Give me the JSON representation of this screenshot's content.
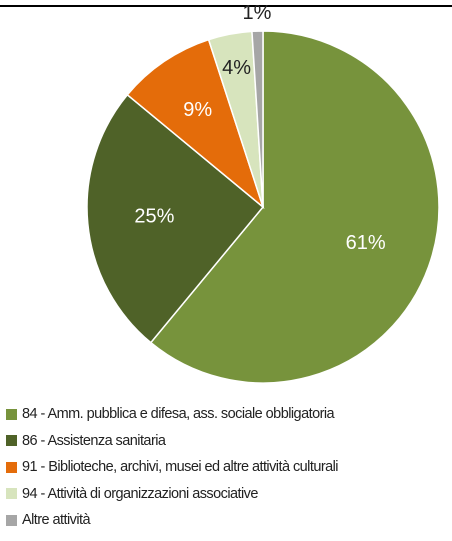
{
  "chart_data": {
    "type": "pie",
    "title": "",
    "start_angle_deg": 0,
    "direction": "clockwise",
    "legend_position": "bottom",
    "slices": [
      {
        "label": "84 - Amm. pubblica e difesa, ass. sociale obbligatoria",
        "value": 61,
        "display": "61%",
        "color": "#77933c",
        "label_color": "#ffffff"
      },
      {
        "label": "86 - Assistenza sanitaria",
        "value": 25,
        "display": "25%",
        "color": "#4f6228",
        "label_color": "#ffffff"
      },
      {
        "label": "91 - Biblioteche, archivi, musei ed altre attività culturali",
        "value": 9,
        "display": "9%",
        "color": "#e46c0a",
        "label_color": "#ffffff"
      },
      {
        "label": "94 - Attività di organizzazioni associative",
        "value": 4,
        "display": "4%",
        "color": "#d7e4bd",
        "label_color": "#222222"
      },
      {
        "label": "Altre attività",
        "value": 1,
        "display": "1%",
        "color": "#a6a6a6",
        "label_color": "#222222"
      }
    ]
  }
}
